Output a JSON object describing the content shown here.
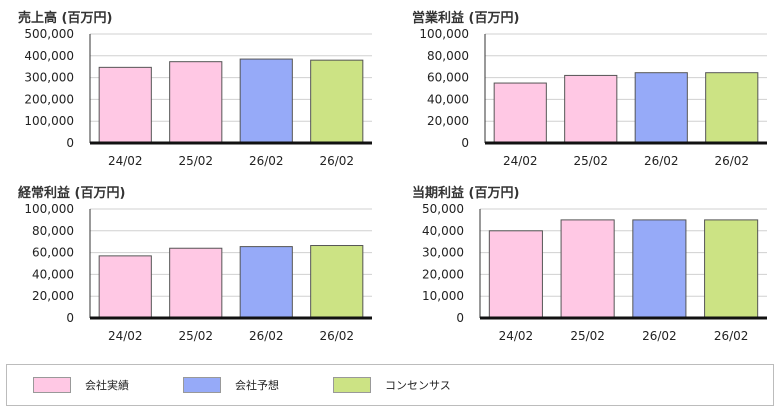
{
  "chart_data": [
    {
      "type": "bar",
      "title": "売上高 (百万円)",
      "categories": [
        "24/02",
        "25/02",
        "26/02",
        "26/02"
      ],
      "values": [
        347000,
        373000,
        385000,
        380000
      ],
      "ylim": [
        0,
        500000
      ],
      "yticks": [
        "500,000",
        "400,000",
        "300,000",
        "200,000",
        "100,000",
        "0"
      ],
      "grid": true
    },
    {
      "type": "bar",
      "title": "営業利益 (百万円)",
      "categories": [
        "24/02",
        "25/02",
        "26/02",
        "26/02"
      ],
      "values": [
        55000,
        62000,
        64500,
        64500
      ],
      "ylim": [
        0,
        100000
      ],
      "yticks": [
        "100,000",
        "80,000",
        "60,000",
        "40,000",
        "20,000",
        "0"
      ],
      "grid": true
    },
    {
      "type": "bar",
      "title": "経常利益 (百万円)",
      "categories": [
        "24/02",
        "25/02",
        "26/02",
        "26/02"
      ],
      "values": [
        57000,
        64000,
        65500,
        66500
      ],
      "ylim": [
        0,
        100000
      ],
      "yticks": [
        "100,000",
        "80,000",
        "60,000",
        "40,000",
        "20,000",
        "0"
      ],
      "grid": true
    },
    {
      "type": "bar",
      "title": "当期利益 (百万円)",
      "categories": [
        "24/02",
        "25/02",
        "26/02",
        "26/02"
      ],
      "values": [
        40000,
        45000,
        45000,
        45000
      ],
      "ylim": [
        0,
        50000
      ],
      "yticks": [
        "50,000",
        "40,000",
        "30,000",
        "20,000",
        "10,000",
        "0"
      ],
      "grid": true
    }
  ],
  "bar_colors": [
    "#ffc8e4",
    "#ffc8e4",
    "#96aaf8",
    "#cce384"
  ],
  "legend": {
    "items": [
      {
        "label": "会社実績",
        "color": "#ffc8e4"
      },
      {
        "label": "会社予想",
        "color": "#96aaf8"
      },
      {
        "label": "コンセンサス",
        "color": "#cce384"
      }
    ]
  }
}
